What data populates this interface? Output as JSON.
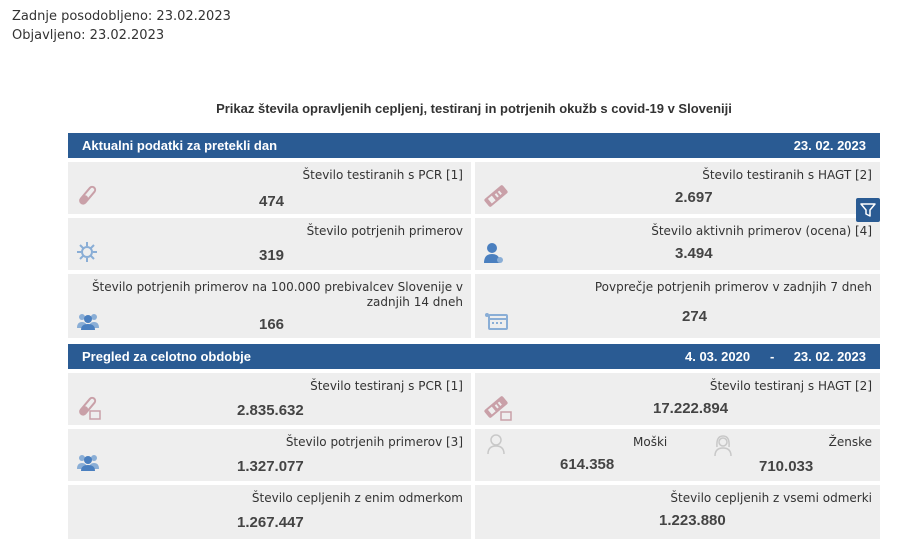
{
  "meta": {
    "updated": "Zadnje posodobljeno: 23.02.2023",
    "published": "Objavljeno: 23.02.2023"
  },
  "title": "Prikaz števila opravljenih cepljenj, testiranj in potrjenih okužb s covid-19 v Sloveniji",
  "daily": {
    "header": "Aktualni podatki za pretekli dan",
    "date": "23. 02. 2023",
    "pcr_tests": {
      "label": "Število testiranih s PCR [1]",
      "value": "474"
    },
    "hagt_tests": {
      "label": "Število testiranih s HAGT [2]",
      "value": "2.697"
    },
    "confirmed": {
      "label": "Število potrjenih primerov",
      "value": "319"
    },
    "active": {
      "label": "Število aktivnih primerov (ocena) [4]",
      "value": "3.494"
    },
    "per100k": {
      "label": "Število potrjenih primerov na 100.000 prebivalcev Slovenije v zadnjih 14 dneh",
      "value": "166"
    },
    "avg7": {
      "label": "Povprečje potrjenih primerov v zadnjih 7 dneh",
      "value": "274"
    }
  },
  "total": {
    "header": "Pregled za celotno obdobje",
    "date_from": "4. 03. 2020",
    "dash": "-",
    "date_to": "23. 02. 2023",
    "pcr_tests": {
      "label": "Število testiranj s PCR [1]",
      "value": "2.835.632"
    },
    "hagt_tests": {
      "label": "Število testiranj s HAGT [2]",
      "value": "17.222.894"
    },
    "confirmed": {
      "label": "Število potrjenih primerov [3]",
      "value": "1.327.077"
    },
    "male": {
      "label": "Moški",
      "value": "614.358"
    },
    "female": {
      "label": "Ženske",
      "value": "710.033"
    },
    "vacc_one": {
      "label": "Število cepljenih z enim odmerkom",
      "value": "1.267.447"
    },
    "vacc_all": {
      "label": "Število cepljenih z vsemi odmerki",
      "value": "1.223.880"
    }
  },
  "icons": {
    "filter": "filter-icon",
    "accent": "#2a5b93",
    "icon_red": "#c9a0a8",
    "icon_blue": "#8aaed6"
  }
}
